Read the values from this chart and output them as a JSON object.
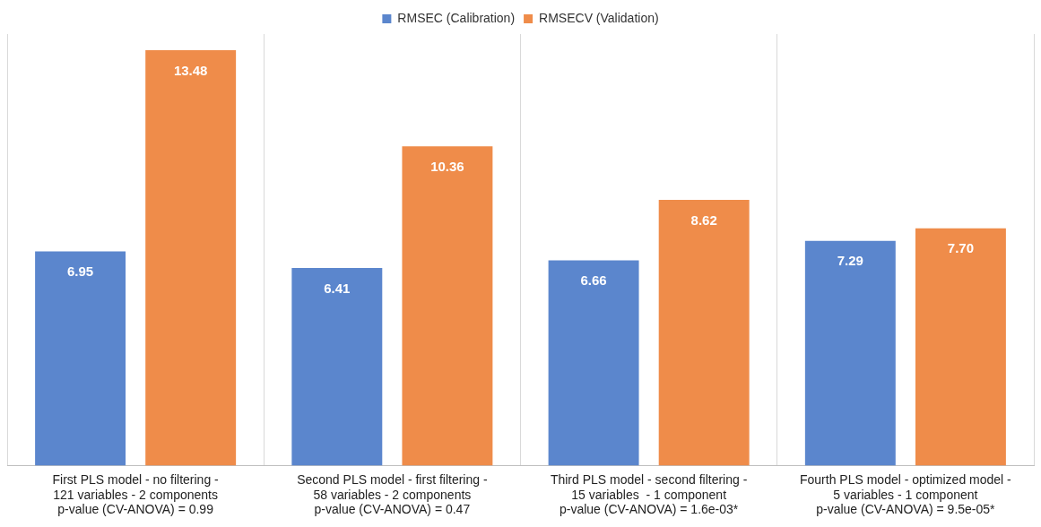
{
  "chart_data": {
    "type": "bar",
    "categories": [
      "First PLS model - no filtering -\n121 variables - 2 components\np-value (CV-ANOVA) = 0.99",
      "Second PLS model - first filtering -\n58 variables - 2 components\np-value (CV-ANOVA) = 0.47",
      "Third PLS model - second filtering -\n15 variables  - 1 component\np-value (CV-ANOVA) = 1.6e-03*",
      "Fourth PLS model - optimized model -\n5 variables - 1 component\np-value (CV-ANOVA) = 9.5e-05*"
    ],
    "series": [
      {
        "name": "RMSEC (Calibration)",
        "color": "#5b86cd",
        "values": [
          6.95,
          6.41,
          6.66,
          7.29
        ],
        "value_labels": [
          "6.95",
          "6.41",
          "6.66",
          "7.29"
        ]
      },
      {
        "name": "RMSECV (Validation)",
        "color": "#ef8c4a",
        "values": [
          13.48,
          10.36,
          8.62,
          7.7
        ],
        "value_labels": [
          "13.48",
          "10.36",
          "8.62",
          "7.70"
        ]
      }
    ],
    "legend": "top",
    "grid": "x",
    "tick_labels": "x"
  }
}
